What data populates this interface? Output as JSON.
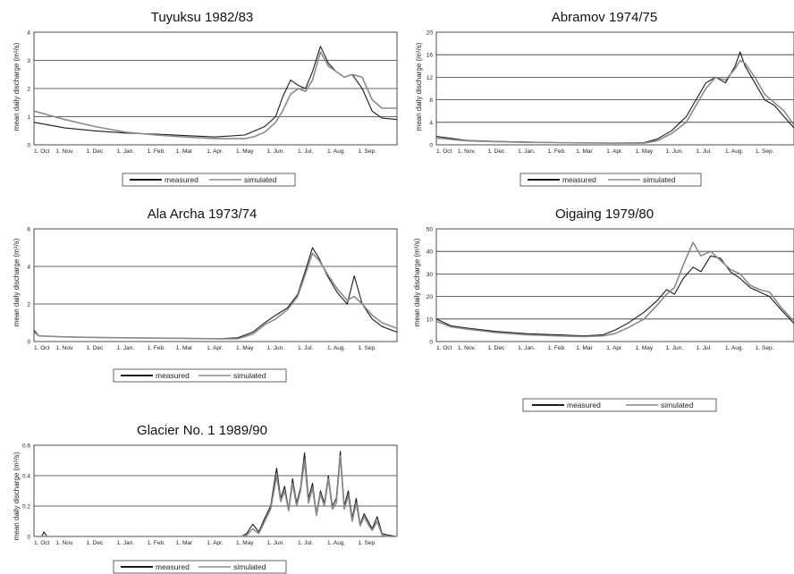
{
  "chart_data": [
    {
      "type": "line",
      "title": "Tuyuksu 1982/83",
      "xlabel": "",
      "ylabel": "mean daily discharge (m³/s)",
      "ylim": [
        0,
        4
      ],
      "yticks": [
        "0",
        "1",
        "2",
        "3",
        "4"
      ],
      "categories": [
        "1. Oct",
        "1. Nov.",
        "1. Dec",
        "1. Jan.",
        "1. Feb.",
        "1. Mar",
        "1. Apr.",
        "1. May",
        "1. Jun.",
        "1. Jul.",
        "1. Aug.",
        "1. Sep."
      ],
      "xlim_days": [
        0,
        365
      ],
      "grid": true,
      "legend": [
        "measured",
        "simulated"
      ],
      "series": [
        {
          "name": "measured",
          "x": [
            0,
            31,
            61,
            92,
            123,
            151,
            182,
            212,
            222,
            232,
            243,
            250,
            258,
            266,
            273,
            280,
            288,
            296,
            304,
            312,
            320,
            330,
            340,
            350,
            365
          ],
          "y": [
            0.8,
            0.6,
            0.5,
            0.42,
            0.38,
            0.33,
            0.28,
            0.35,
            0.5,
            0.65,
            1.0,
            1.7,
            2.3,
            2.1,
            2.0,
            2.6,
            3.5,
            2.9,
            2.6,
            2.4,
            2.5,
            2.0,
            1.2,
            0.95,
            0.9
          ]
        },
        {
          "name": "simulated",
          "x": [
            0,
            31,
            61,
            92,
            123,
            151,
            182,
            212,
            222,
            232,
            243,
            250,
            258,
            266,
            273,
            280,
            288,
            296,
            304,
            312,
            320,
            330,
            340,
            350,
            365
          ],
          "y": [
            1.2,
            0.9,
            0.65,
            0.45,
            0.35,
            0.28,
            0.22,
            0.22,
            0.3,
            0.45,
            0.8,
            1.2,
            1.8,
            2.0,
            1.9,
            2.3,
            3.3,
            2.8,
            2.6,
            2.4,
            2.5,
            2.4,
            1.6,
            1.3,
            1.3
          ]
        }
      ]
    },
    {
      "type": "line",
      "title": "Abramov 1974/75",
      "xlabel": "",
      "ylabel": "mean daily discharge (m³/s)",
      "ylim": [
        0,
        20
      ],
      "yticks": [
        "0",
        "4",
        "8",
        "12",
        "16",
        "20"
      ],
      "categories": [
        "1. Oct",
        "1. Nov.",
        "1. Dec",
        "1. Jan.",
        "1. Feb.",
        "1. Mar",
        "1. Apr.",
        "1. May",
        "1. Jun.",
        "1. Jul.",
        "1. Aug.",
        "1. Sep."
      ],
      "xlim_days": [
        0,
        365
      ],
      "grid": true,
      "legend": [
        "measured",
        "simulated"
      ],
      "series": [
        {
          "name": "measured",
          "x": [
            0,
            31,
            61,
            92,
            123,
            151,
            182,
            212,
            225,
            240,
            255,
            265,
            275,
            285,
            295,
            305,
            310,
            315,
            325,
            335,
            345,
            355,
            365
          ],
          "y": [
            1.5,
            0.8,
            0.6,
            0.5,
            0.4,
            0.35,
            0.3,
            0.4,
            1.0,
            2.5,
            5,
            8,
            11,
            12,
            11,
            14,
            16.5,
            14,
            11,
            8,
            7,
            5,
            3
          ]
        },
        {
          "name": "simulated",
          "x": [
            0,
            31,
            61,
            92,
            123,
            151,
            182,
            212,
            225,
            240,
            255,
            265,
            275,
            285,
            295,
            305,
            310,
            315,
            325,
            335,
            345,
            355,
            365
          ],
          "y": [
            1.2,
            0.7,
            0.55,
            0.45,
            0.4,
            0.35,
            0.3,
            0.3,
            0.7,
            2.0,
            4,
            7,
            10,
            12,
            11.5,
            13.5,
            15,
            14.5,
            12,
            9,
            7.5,
            6,
            3.5
          ]
        }
      ]
    },
    {
      "type": "line",
      "title": "Ala Archa 1973/74",
      "xlabel": "",
      "ylabel": "mean daily discharge (m³/s)",
      "ylim": [
        0,
        6
      ],
      "yticks": [
        "0",
        "2",
        "4",
        "6"
      ],
      "categories": [
        "1. Oct",
        "1. Nov.",
        "1. Dec",
        "1. Jan.",
        "1. Feb.",
        "1. Mar",
        "1. Apr.",
        "1. May",
        "1. Jun.",
        "1. Jul.",
        "1. Aug.",
        "1. Sep."
      ],
      "xlim_days": [
        0,
        365
      ],
      "grid": true,
      "legend": [
        "measured",
        "simulated"
      ],
      "series": [
        {
          "name": "measured",
          "x": [
            0,
            5,
            31,
            61,
            92,
            123,
            151,
            182,
            205,
            220,
            232,
            243,
            255,
            265,
            273,
            280,
            287,
            295,
            305,
            315,
            322,
            330,
            340,
            350,
            365
          ],
          "y": [
            0.6,
            0.3,
            0.25,
            0.22,
            0.2,
            0.18,
            0.17,
            0.15,
            0.2,
            0.5,
            1.0,
            1.4,
            1.8,
            2.5,
            3.8,
            5.0,
            4.4,
            3.5,
            2.6,
            2.0,
            3.5,
            2.0,
            1.2,
            0.8,
            0.5
          ]
        },
        {
          "name": "simulated",
          "x": [
            0,
            5,
            31,
            61,
            92,
            123,
            151,
            182,
            205,
            220,
            232,
            243,
            255,
            265,
            273,
            280,
            287,
            295,
            305,
            315,
            322,
            330,
            340,
            350,
            365
          ],
          "y": [
            0.5,
            0.3,
            0.25,
            0.22,
            0.2,
            0.18,
            0.17,
            0.15,
            0.15,
            0.4,
            0.9,
            1.2,
            1.7,
            2.4,
            3.6,
            4.7,
            4.3,
            3.6,
            2.8,
            2.2,
            2.4,
            2.0,
            1.4,
            1.0,
            0.7
          ]
        }
      ]
    },
    {
      "type": "line",
      "title": "Oigaing 1979/80",
      "xlabel": "",
      "ylabel": "mean daily discharge (m³/s)",
      "ylim": [
        0,
        50
      ],
      "yticks": [
        "0",
        "10",
        "20",
        "30",
        "40",
        "50"
      ],
      "categories": [
        "1. Oct",
        "1. Nov.",
        "1. Dec",
        "1. Jan.",
        "1. Feb.",
        "1. Mar",
        "1. Apr.",
        "1. May",
        "1. Jun.",
        "1. Jul.",
        "1. Aug.",
        "1. Sep."
      ],
      "xlim_days": [
        0,
        365
      ],
      "grid": true,
      "legend": [
        "measured",
        "simulated"
      ],
      "series": [
        {
          "name": "measured",
          "x": [
            0,
            15,
            31,
            61,
            92,
            123,
            151,
            170,
            182,
            195,
            212,
            225,
            235,
            243,
            252,
            262,
            270,
            280,
            290,
            300,
            310,
            320,
            330,
            340,
            352,
            365
          ],
          "y": [
            10,
            7,
            6,
            4.5,
            3.5,
            3,
            2.5,
            3,
            5,
            8,
            13,
            18,
            23,
            21,
            28,
            33,
            31,
            38,
            37,
            31,
            28,
            24,
            22,
            20,
            14,
            8
          ]
        },
        {
          "name": "simulated",
          "x": [
            0,
            15,
            31,
            61,
            92,
            123,
            151,
            170,
            182,
            195,
            212,
            225,
            235,
            243,
            252,
            262,
            270,
            280,
            290,
            300,
            310,
            320,
            330,
            340,
            352,
            365
          ],
          "y": [
            9,
            6.5,
            5.5,
            4,
            3,
            2.5,
            2.2,
            2.5,
            3.5,
            6,
            10,
            16,
            21,
            24,
            34,
            44,
            38,
            40,
            36,
            32,
            30,
            25,
            23,
            22,
            15,
            9
          ]
        }
      ]
    },
    {
      "type": "line",
      "title": "Glacier No. 1 1989/90",
      "xlabel": "",
      "ylabel": "mean daily discharge (m³/s)",
      "ylim": [
        0,
        0.6
      ],
      "yticks": [
        "0",
        "0.2",
        "0.4",
        "0.6"
      ],
      "categories": [
        "1. Oct",
        "1. Nov.",
        "1. Dec",
        "1. Jan.",
        "1. Feb.",
        "1. Mar",
        "1. Apr.",
        "1. May",
        "1. Jun.",
        "1. Jul.",
        "1. Aug.",
        "1. Sep."
      ],
      "xlim_days": [
        0,
        365
      ],
      "grid": true,
      "legend": [
        "measured",
        "simulated"
      ],
      "series": [
        {
          "name": "measured",
          "x": [
            0,
            8,
            10,
            13,
            31,
            61,
            92,
            123,
            151,
            182,
            208,
            214,
            220,
            226,
            232,
            238,
            244,
            248,
            252,
            256,
            260,
            264,
            268,
            272,
            276,
            280,
            284,
            288,
            292,
            296,
            300,
            304,
            308,
            312,
            316,
            320,
            324,
            328,
            332,
            336,
            340,
            345,
            350,
            355,
            365
          ],
          "y": [
            0,
            0,
            0.03,
            0,
            0,
            0,
            0,
            0,
            0,
            0,
            0,
            0.02,
            0.08,
            0.03,
            0.12,
            0.2,
            0.45,
            0.25,
            0.33,
            0.18,
            0.38,
            0.22,
            0.32,
            0.55,
            0.25,
            0.35,
            0.15,
            0.3,
            0.22,
            0.4,
            0.2,
            0.25,
            0.56,
            0.2,
            0.3,
            0.12,
            0.25,
            0.08,
            0.15,
            0.1,
            0.05,
            0.13,
            0.02,
            0.01,
            0
          ]
        },
        {
          "name": "simulated",
          "x": [
            0,
            31,
            61,
            92,
            123,
            151,
            182,
            208,
            214,
            220,
            226,
            232,
            238,
            244,
            248,
            252,
            256,
            260,
            264,
            268,
            272,
            276,
            280,
            284,
            288,
            292,
            296,
            300,
            304,
            308,
            312,
            316,
            320,
            324,
            328,
            332,
            336,
            340,
            345,
            350,
            355,
            365
          ],
          "y": [
            0,
            0,
            0,
            0,
            0,
            0,
            0,
            0,
            0.01,
            0.05,
            0.02,
            0.1,
            0.18,
            0.4,
            0.23,
            0.3,
            0.17,
            0.35,
            0.2,
            0.3,
            0.5,
            0.22,
            0.32,
            0.14,
            0.28,
            0.2,
            0.38,
            0.18,
            0.22,
            0.53,
            0.18,
            0.27,
            0.1,
            0.22,
            0.07,
            0.13,
            0.08,
            0.04,
            0.1,
            0.01,
            0,
            0
          ]
        }
      ]
    }
  ],
  "colors": {
    "measured": "#1a1a1a",
    "simulated": "#8a8a8a",
    "grid": "#333333",
    "axis": "#222222"
  }
}
